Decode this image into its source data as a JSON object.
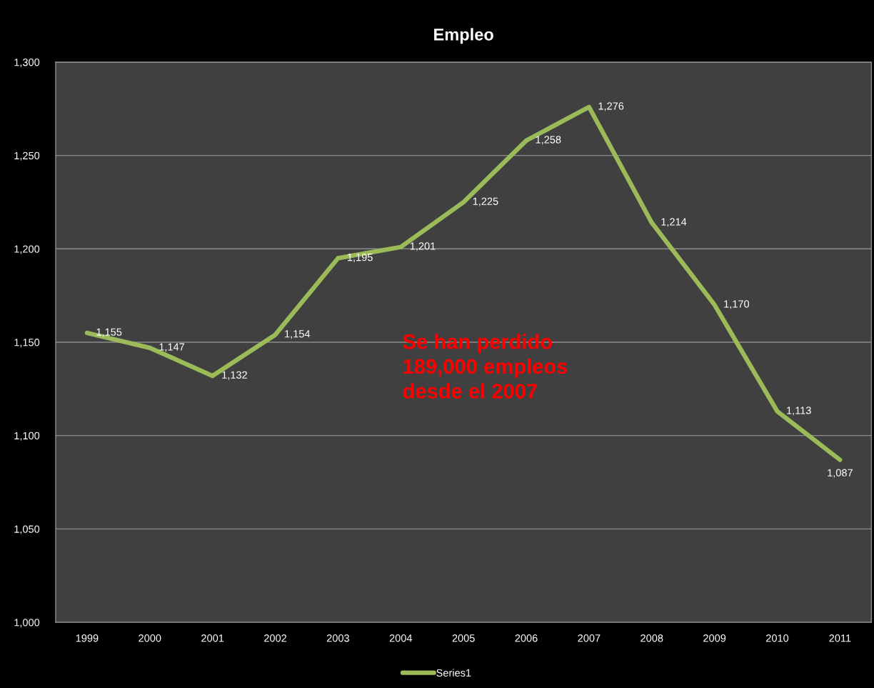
{
  "chart_data": {
    "type": "line",
    "title": "Empleo",
    "categories": [
      "1999",
      "2000",
      "2001",
      "2002",
      "2003",
      "2004",
      "2005",
      "2006",
      "2007",
      "2008",
      "2009",
      "2010",
      "2011"
    ],
    "series": [
      {
        "name": "Series1",
        "color": "#9bbb59",
        "values": [
          1155,
          1147,
          1132,
          1154,
          1195,
          1201,
          1225,
          1258,
          1276,
          1214,
          1170,
          1113,
          1087
        ],
        "value_labels": [
          "1,155",
          "1,147",
          "1,132",
          "1,154",
          "1,195",
          "1,201",
          "1,225",
          "1,258",
          "1,276",
          "1,214",
          "1,170",
          "1,113",
          "1,087"
        ]
      }
    ],
    "ylim": [
      1000,
      1300
    ],
    "yticks": [
      {
        "value": 1000,
        "label": "1,000"
      },
      {
        "value": 1050,
        "label": "1,050"
      },
      {
        "value": 1100,
        "label": "1,100"
      },
      {
        "value": 1150,
        "label": "1,150"
      },
      {
        "value": 1200,
        "label": "1,200"
      },
      {
        "value": 1250,
        "label": "1,250"
      },
      {
        "value": 1300,
        "label": "1,300"
      }
    ],
    "grid": "y",
    "legend": "bottom",
    "line_style": "solid",
    "annotations": [
      "Se han perdido\n189,000 empleos\ndesde el 2007"
    ]
  }
}
